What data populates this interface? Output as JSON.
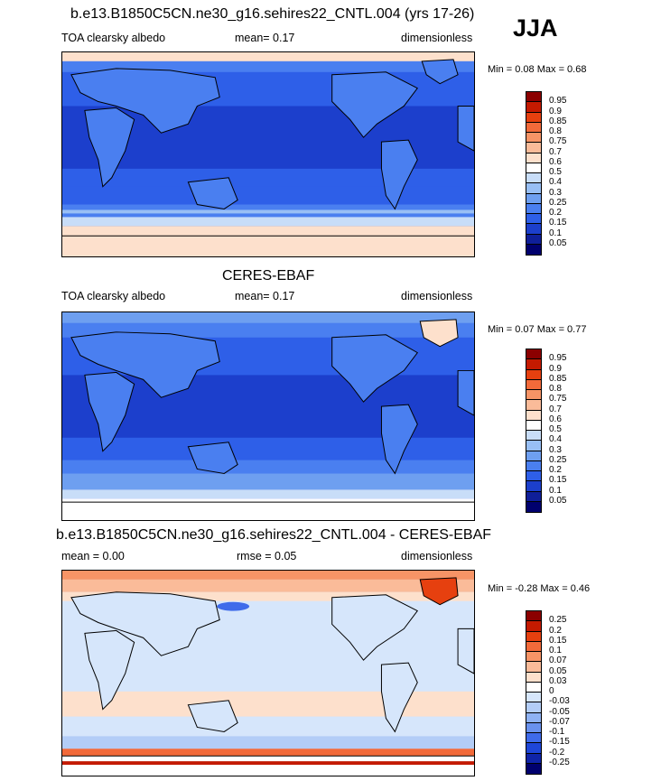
{
  "season": "JJA",
  "panels": [
    {
      "title": "b.e13.B1850C5CN.ne30_g16.sehires22_CNTL.004 (yrs 17-26)",
      "left": "TOA clearsky albedo",
      "mean": "mean=  0.17",
      "right": "dimensionless",
      "minmax": "Min =  0.08 Max =  0.68",
      "levels": [
        "0.95",
        "0.9",
        "0.85",
        "0.8",
        "0.75",
        "0.7",
        "0.6",
        "0.5",
        "0.4",
        "0.3",
        "0.25",
        "0.2",
        "0.15",
        "0.1",
        "0.05"
      ],
      "colors": [
        "#8b0000",
        "#c41a00",
        "#e6400f",
        "#f26a3a",
        "#f79466",
        "#fabb99",
        "#fde0cc",
        "#ffffff",
        "#c8ddf8",
        "#98bff5",
        "#6e9ff0",
        "#4a7ff0",
        "#2e5fe8",
        "#1c3fcc",
        "#0f1f99",
        "#00006e"
      ]
    },
    {
      "title": "CERES-EBAF",
      "left": "TOA clearsky albedo",
      "mean": "mean=  0.17",
      "right": "dimensionless",
      "minmax": "Min =  0.07 Max =  0.77",
      "levels": [
        "0.95",
        "0.9",
        "0.85",
        "0.8",
        "0.75",
        "0.7",
        "0.6",
        "0.5",
        "0.4",
        "0.3",
        "0.25",
        "0.2",
        "0.15",
        "0.1",
        "0.05"
      ],
      "colors": [
        "#8b0000",
        "#c41a00",
        "#e6400f",
        "#f26a3a",
        "#f79466",
        "#fabb99",
        "#fde0cc",
        "#ffffff",
        "#c8ddf8",
        "#98bff5",
        "#6e9ff0",
        "#4a7ff0",
        "#2e5fe8",
        "#1c3fcc",
        "#0f1f99",
        "#00006e"
      ]
    },
    {
      "title": "b.e13.B1850C5CN.ne30_g16.sehires22_CNTL.004 - CERES-EBAF",
      "left": "mean =   0.00",
      "mean": "rmse =   0.05",
      "right": "dimensionless",
      "minmax": "Min =  -0.28 Max =   0.46",
      "levels": [
        "0.25",
        "0.2",
        "0.15",
        "0.1",
        "0.07",
        "0.05",
        "0.03",
        "0",
        "-0.03",
        "-0.05",
        "-0.07",
        "-0.1",
        "-0.15",
        "-0.2",
        "-0.25"
      ],
      "colors": [
        "#8b0000",
        "#c41a00",
        "#e6400f",
        "#f26a3a",
        "#f79466",
        "#fabb99",
        "#fde0cc",
        "#ffffff",
        "#d6e6fb",
        "#b3cdf7",
        "#8fb2f3",
        "#6a92ee",
        "#3f6bea",
        "#1e46d8",
        "#0f24a8",
        "#00006e"
      ]
    }
  ]
}
